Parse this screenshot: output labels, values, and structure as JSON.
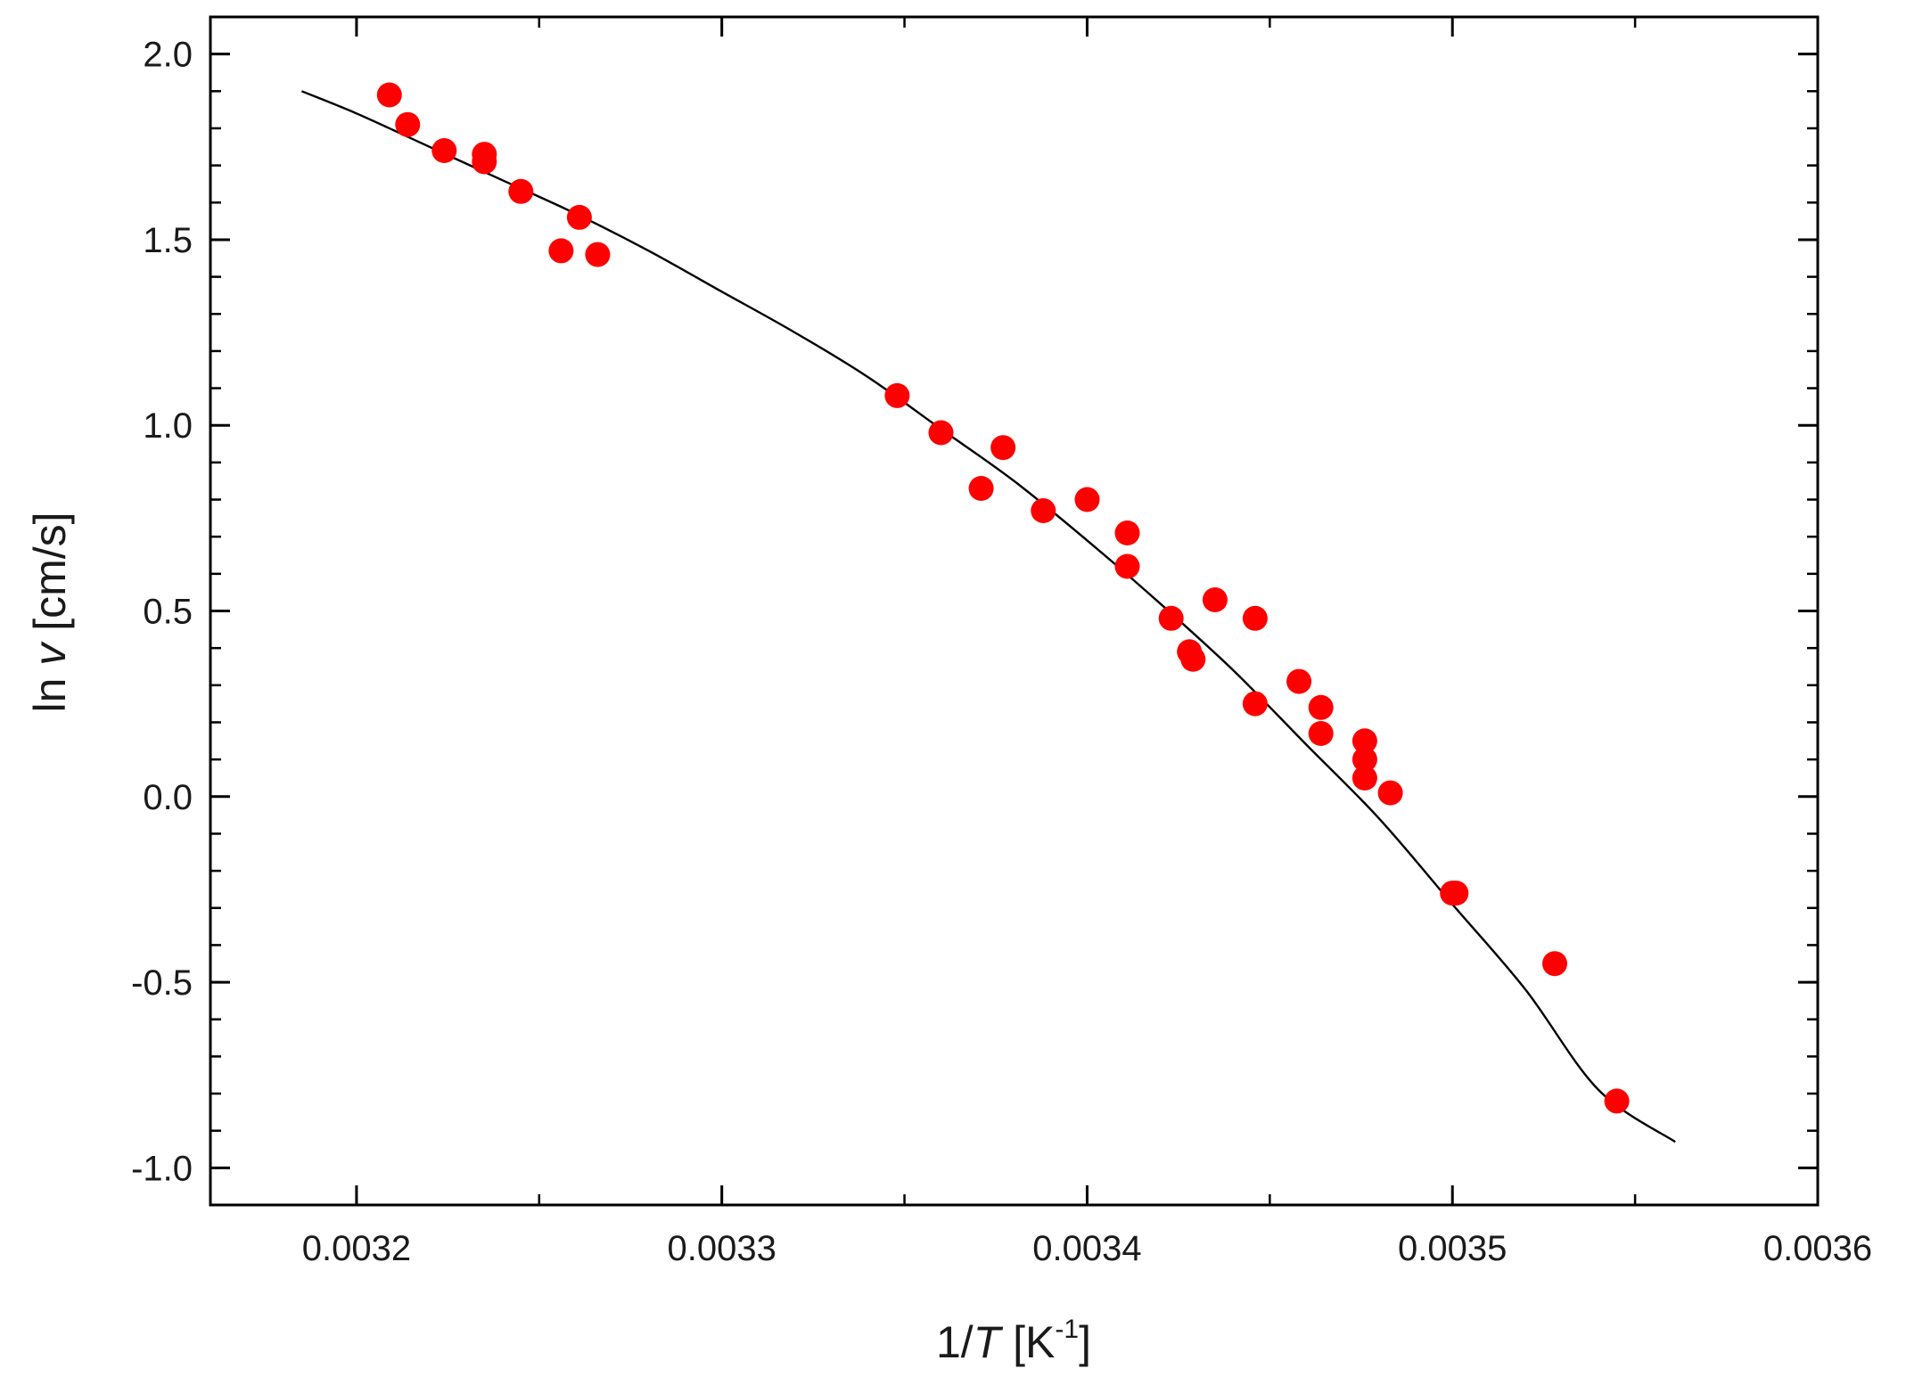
{
  "chart_data": {
    "type": "scatter",
    "xlabel": {
      "prefix": "1/",
      "var": "T",
      "unit_open": " [K",
      "sup": "-1",
      "unit_close": "]"
    },
    "ylabel": {
      "prefix": "ln ",
      "var": "v",
      "unit": " [cm/s]"
    },
    "xlim": [
      0.00316,
      0.0036
    ],
    "ylim": [
      -1.1,
      2.1
    ],
    "x_ticks": [
      {
        "value": 0.0032,
        "label": "0.0032"
      },
      {
        "value": 0.0033,
        "label": "0.0033"
      },
      {
        "value": 0.0034,
        "label": "0.0034"
      },
      {
        "value": 0.0035,
        "label": "0.0035"
      },
      {
        "value": 0.0036,
        "label": "0.0036"
      }
    ],
    "y_ticks": [
      {
        "value": -1.0,
        "label": "-1.0"
      },
      {
        "value": -0.5,
        "label": "-0.5"
      },
      {
        "value": 0.0,
        "label": "0.0"
      },
      {
        "value": 0.5,
        "label": "0.5"
      },
      {
        "value": 1.0,
        "label": "1.0"
      },
      {
        "value": 1.5,
        "label": "1.5"
      },
      {
        "value": 2.0,
        "label": "2.0"
      }
    ],
    "x_minor_step": 5e-05,
    "y_minor_step": 0.1,
    "grid": false,
    "colors": {
      "points": "#ff0000",
      "fit": "#000000",
      "axes": "#000000"
    },
    "series": [
      {
        "type": "scatter",
        "points": [
          [
            0.003209,
            1.89
          ],
          [
            0.003214,
            1.81
          ],
          [
            0.003224,
            1.74
          ],
          [
            0.003235,
            1.73
          ],
          [
            0.003235,
            1.71
          ],
          [
            0.003245,
            1.63
          ],
          [
            0.003256,
            1.47
          ],
          [
            0.003261,
            1.56
          ],
          [
            0.003266,
            1.46
          ],
          [
            0.003348,
            1.08
          ],
          [
            0.00336,
            0.98
          ],
          [
            0.003371,
            0.83
          ],
          [
            0.003377,
            0.94
          ],
          [
            0.003388,
            0.77
          ],
          [
            0.0034,
            0.8
          ],
          [
            0.003411,
            0.71
          ],
          [
            0.003411,
            0.62
          ],
          [
            0.003423,
            0.48
          ],
          [
            0.003428,
            0.39
          ],
          [
            0.003429,
            0.37
          ],
          [
            0.003435,
            0.53
          ],
          [
            0.003446,
            0.48
          ],
          [
            0.003446,
            0.25
          ],
          [
            0.003458,
            0.31
          ],
          [
            0.003464,
            0.24
          ],
          [
            0.003464,
            0.17
          ],
          [
            0.003476,
            0.15
          ],
          [
            0.003476,
            0.1
          ],
          [
            0.003476,
            0.05
          ],
          [
            0.003483,
            0.01
          ],
          [
            0.0035,
            -0.26
          ],
          [
            0.003501,
            -0.26
          ],
          [
            0.003528,
            -0.45
          ],
          [
            0.003545,
            -0.82
          ]
        ]
      },
      {
        "type": "line",
        "points": [
          [
            0.003185,
            1.9
          ],
          [
            0.0032,
            1.84
          ],
          [
            0.00322,
            1.75
          ],
          [
            0.00324,
            1.66
          ],
          [
            0.00326,
            1.57
          ],
          [
            0.00328,
            1.47
          ],
          [
            0.0033,
            1.36
          ],
          [
            0.00332,
            1.25
          ],
          [
            0.00334,
            1.13
          ],
          [
            0.00336,
            0.99
          ],
          [
            0.00338,
            0.85
          ],
          [
            0.0034,
            0.69
          ],
          [
            0.00342,
            0.52
          ],
          [
            0.00344,
            0.34
          ],
          [
            0.00346,
            0.14
          ],
          [
            0.00348,
            -0.06
          ],
          [
            0.0035,
            -0.29
          ],
          [
            0.00352,
            -0.52
          ],
          [
            0.00354,
            -0.79
          ],
          [
            0.003561,
            -0.93
          ]
        ]
      }
    ]
  }
}
